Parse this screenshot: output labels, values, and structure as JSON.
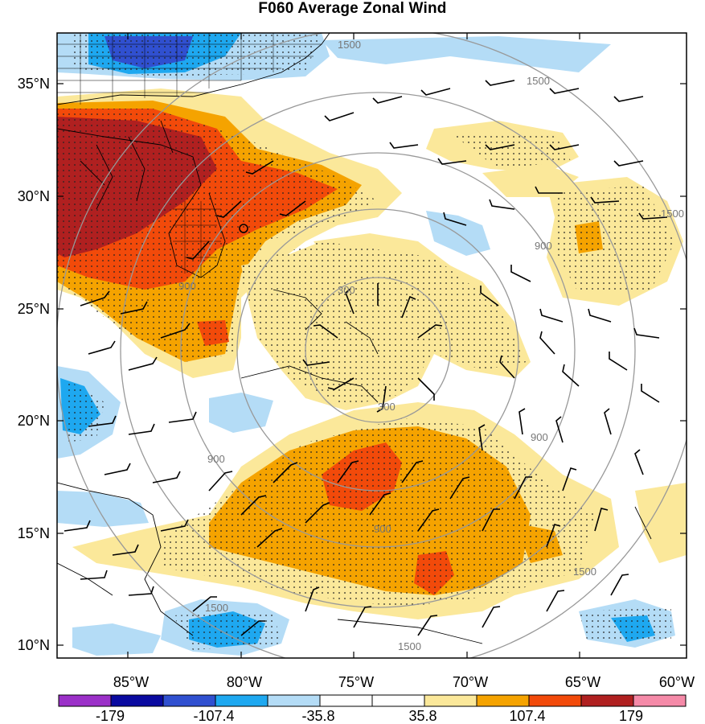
{
  "title": "F060 Average Zonal Wind",
  "map": {
    "lat_labels": [
      "35°N",
      "30°N",
      "25°N",
      "20°N",
      "15°N",
      "10°N"
    ],
    "lon_labels": [
      "85°W",
      "80°W",
      "75°W",
      "70°W",
      "65°W",
      "60°W"
    ],
    "contour_labels": {
      "r300": [
        "300",
        "300"
      ],
      "r900": [
        "900",
        "900",
        "900",
        "900",
        "900"
      ],
      "r1500": [
        "1500",
        "1500",
        "1500",
        "1500",
        "1500",
        "1500"
      ]
    }
  },
  "colorbar": {
    "colors": [
      "#9b30c8",
      "#0a0aa0",
      "#3050d0",
      "#1ea8f0",
      "#b4dcf6",
      "#ffffff",
      "#ffffff",
      "#fbe89a",
      "#f5a300",
      "#f24a0a",
      "#b02020",
      "#f58aa8"
    ],
    "labels": [
      "-179",
      "-107.4",
      "-35.8",
      "35.8",
      "107.4",
      "179"
    ]
  }
}
